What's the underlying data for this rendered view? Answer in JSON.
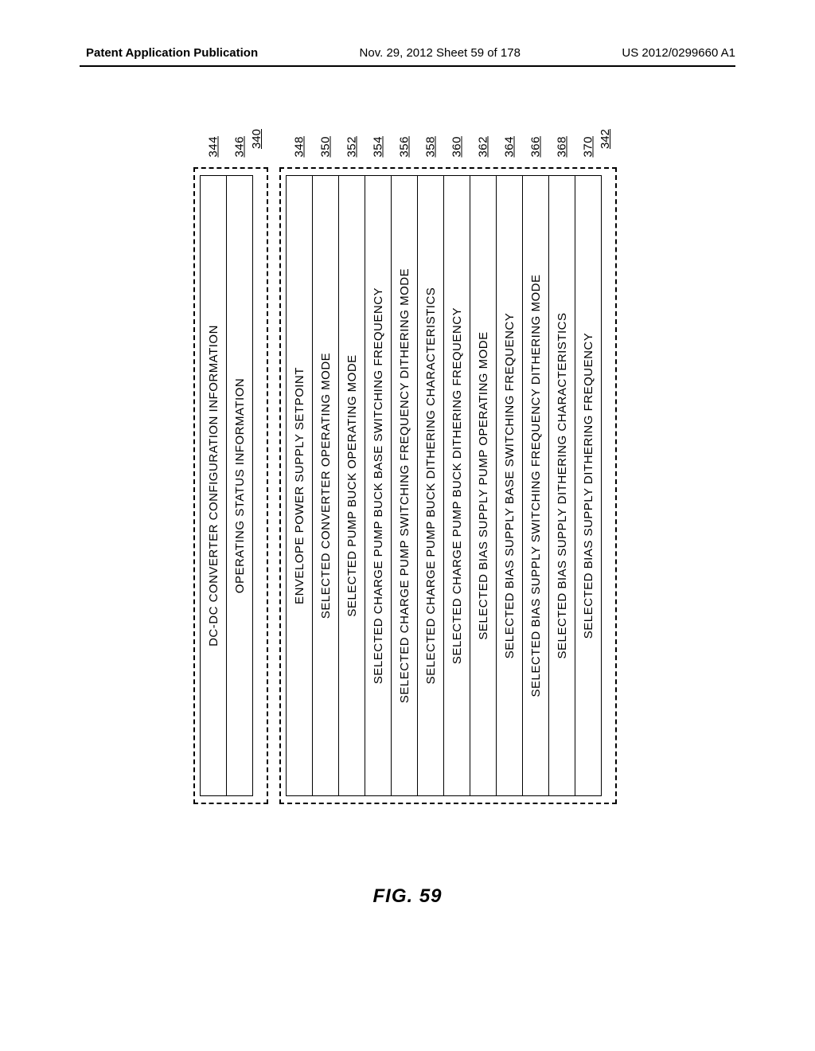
{
  "header": {
    "left": "Patent Application Publication",
    "mid": "Nov. 29, 2012  Sheet 59 of 178",
    "right": "US 2012/0299660 A1"
  },
  "figure_label": "FIG. 59",
  "blocks": {
    "top": {
      "outer_ref": "340",
      "rows": [
        {
          "label": "DC-DC CONVERTER CONFIGURATION INFORMATION",
          "ref": "344"
        },
        {
          "label": "OPERATING STATUS INFORMATION",
          "ref": "346"
        }
      ]
    },
    "bottom": {
      "outer_ref": "342",
      "rows": [
        {
          "label": "ENVELOPE POWER SUPPLY SETPOINT",
          "ref": "348"
        },
        {
          "label": "SELECTED CONVERTER OPERATING MODE",
          "ref": "350"
        },
        {
          "label": "SELECTED PUMP BUCK OPERATING MODE",
          "ref": "352"
        },
        {
          "label": "SELECTED CHARGE PUMP BUCK BASE SWITCHING FREQUENCY",
          "ref": "354"
        },
        {
          "label": "SELECTED CHARGE PUMP SWITCHING FREQUENCY DITHERING MODE",
          "ref": "356"
        },
        {
          "label": "SELECTED CHARGE PUMP BUCK DITHERING CHARACTERISTICS",
          "ref": "358"
        },
        {
          "label": "SELECTED CHARGE PUMP BUCK DITHERING FREQUENCY",
          "ref": "360"
        },
        {
          "label": "SELECTED BIAS SUPPLY PUMP OPERATING MODE",
          "ref": "362"
        },
        {
          "label": "SELECTED BIAS SUPPLY BASE SWITCHING FREQUENCY",
          "ref": "364"
        },
        {
          "label": "SELECTED BIAS SUPPLY SWITCHING FREQUENCY DITHERING MODE",
          "ref": "366"
        },
        {
          "label": "SELECTED BIAS SUPPLY DITHERING CHARACTERISTICS",
          "ref": "368"
        },
        {
          "label": "SELECTED BIAS SUPPLY DITHERING FREQUENCY",
          "ref": "370"
        }
      ]
    }
  }
}
